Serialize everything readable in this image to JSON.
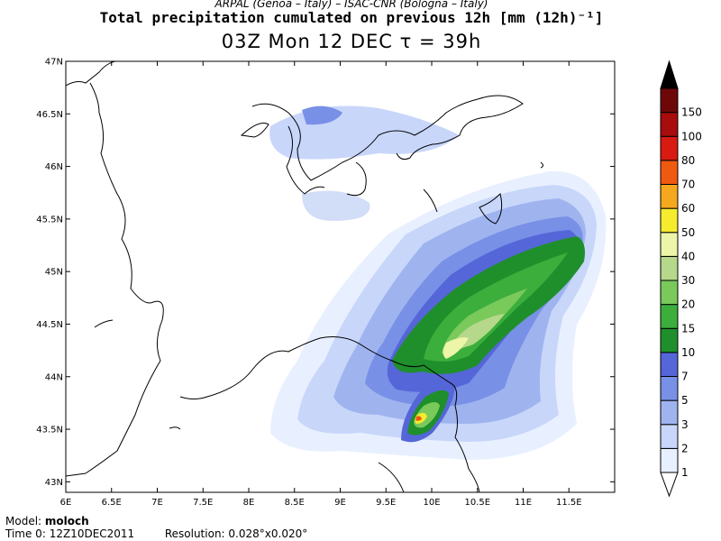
{
  "header": {
    "credit": "ARPAL (Genoa – Italy)  –  ISAC-CNR (Bologna – Italy)",
    "title": "Total precipitation cumulated on previous 12h [mm (12h)⁻¹]",
    "subtitle": "03Z Mon 12 DEC  τ = 39h"
  },
  "map": {
    "lon_range": [
      6,
      12
    ],
    "lat_range": [
      42.9,
      47
    ],
    "lon_ticks": [
      "6E",
      "6.5E",
      "7E",
      "7.5E",
      "8E",
      "8.5E",
      "9E",
      "9.5E",
      "10E",
      "10.5E",
      "11E",
      "11.5E"
    ],
    "lat_ticks": [
      "43N",
      "43.5N",
      "44N",
      "44.5N",
      "45N",
      "45.5N",
      "46N",
      "46.5N",
      "47N"
    ]
  },
  "legend": {
    "levels": [
      "1",
      "2",
      "3",
      "5",
      "7",
      "10",
      "15",
      "20",
      "30",
      "40",
      "50",
      "60",
      "70",
      "80",
      "100",
      "150"
    ],
    "colors": [
      "#e8f0ff",
      "#c8d6fa",
      "#9fb4ef",
      "#7890e6",
      "#5566d8",
      "#1f8f2c",
      "#3cae3c",
      "#79c95b",
      "#b5d88b",
      "#ecf5a8",
      "#f5ec2e",
      "#f5a81e",
      "#f05a10",
      "#d81a12",
      "#a80c0c",
      "#6e0808",
      "#000000"
    ]
  },
  "footer": {
    "model_label": "Model:",
    "model_value": "moloch",
    "time_label": "Time 0:",
    "time_value": "12Z10DEC2011",
    "resolution_label": "Resolution:",
    "resolution_value": "0.028°x0.020°"
  }
}
